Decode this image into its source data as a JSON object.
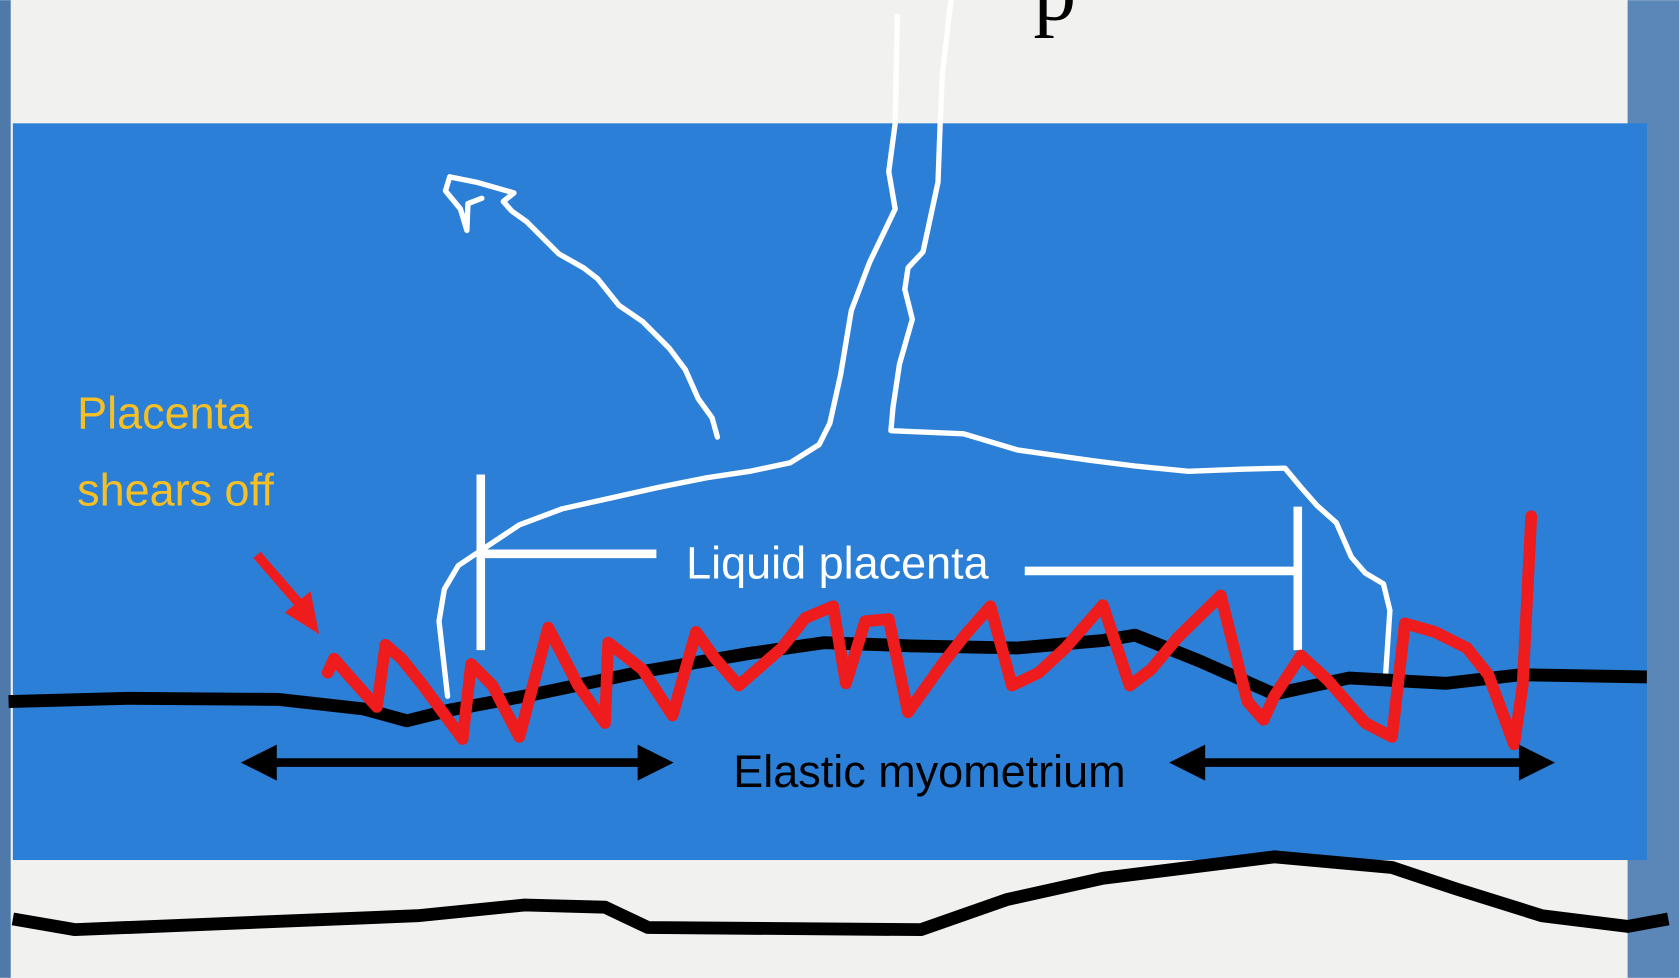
{
  "title_fragment": "p",
  "labels": {
    "placenta_shears_off": [
      "Placenta",
      "shears off"
    ],
    "liquid_placenta": "Liquid placenta",
    "elastic_myometrium": "Elastic myometrium"
  }
}
